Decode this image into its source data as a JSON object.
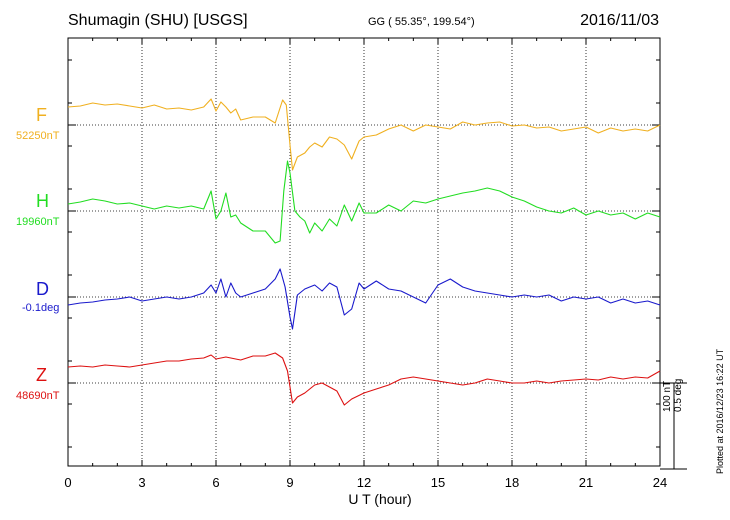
{
  "header": {
    "title": "Shumagin (SHU)  [USGS]",
    "coords": "GG ( 55.35°, 199.54°)",
    "date": "2016/11/03"
  },
  "colors": {
    "F": "#f0b020",
    "H": "#22dd22",
    "D": "#1a1acc",
    "Z": "#dd1111"
  },
  "components": {
    "F": {
      "letter": "F",
      "baseline": "52250nT"
    },
    "H": {
      "letter": "H",
      "baseline": "19960nT"
    },
    "D": {
      "letter": "D",
      "baseline": "-0.1deg"
    },
    "Z": {
      "letter": "Z",
      "baseline": "48690nT"
    }
  },
  "scale_bar": {
    "line1": "100 nT",
    "line2": "0.5 deg",
    "nt_span": 100
  },
  "plotted_note": "Plotted at 2016/12/23 16:22 UT",
  "chart_data": {
    "type": "line",
    "title": "Shumagin (SHU)  [USGS]",
    "xlabel": "U T (hour)",
    "ylabel": "",
    "xlim": [
      0,
      24
    ],
    "xticks": [
      0,
      3,
      6,
      9,
      12,
      15,
      18,
      21,
      24
    ],
    "x_tick_labels": [
      "0",
      "3",
      "6",
      "9",
      "12",
      "15",
      "18",
      "21",
      "24"
    ],
    "grid": true,
    "units": "nT offset from baseline",
    "series": [
      {
        "name": "F",
        "baseline": "52250nT",
        "points": [
          [
            0,
            18
          ],
          [
            0.5,
            19
          ],
          [
            1,
            22
          ],
          [
            1.5,
            20
          ],
          [
            2,
            21
          ],
          [
            2.5,
            19
          ],
          [
            3,
            17
          ],
          [
            3.5,
            20
          ],
          [
            4,
            16
          ],
          [
            4.5,
            17
          ],
          [
            5,
            15
          ],
          [
            5.5,
            18
          ],
          [
            5.8,
            26
          ],
          [
            6,
            14
          ],
          [
            6.2,
            23
          ],
          [
            6.4,
            18
          ],
          [
            6.6,
            12
          ],
          [
            6.8,
            16
          ],
          [
            7,
            5
          ],
          [
            7.5,
            8
          ],
          [
            8,
            8
          ],
          [
            8.4,
            2
          ],
          [
            8.7,
            25
          ],
          [
            8.85,
            20
          ],
          [
            9,
            -20
          ],
          [
            9.1,
            -45
          ],
          [
            9.3,
            -32
          ],
          [
            9.6,
            -28
          ],
          [
            9.8,
            -22
          ],
          [
            10,
            -18
          ],
          [
            10.3,
            -22
          ],
          [
            10.6,
            -12
          ],
          [
            10.9,
            -14
          ],
          [
            11.2,
            -20
          ],
          [
            11.5,
            -34
          ],
          [
            11.8,
            -16
          ],
          [
            12,
            -12
          ],
          [
            12.5,
            -10
          ],
          [
            13,
            -4
          ],
          [
            13.5,
            0
          ],
          [
            14,
            -6
          ],
          [
            14.5,
            0
          ],
          [
            15,
            -2
          ],
          [
            15.5,
            -4
          ],
          [
            16,
            3
          ],
          [
            16.5,
            0
          ],
          [
            17,
            2
          ],
          [
            17.5,
            3
          ],
          [
            18,
            -1
          ],
          [
            18.5,
            0
          ],
          [
            19,
            -3
          ],
          [
            19.5,
            -2
          ],
          [
            20,
            -6
          ],
          [
            20.5,
            -4
          ],
          [
            21,
            -2
          ],
          [
            21.5,
            -8
          ],
          [
            22,
            -3
          ],
          [
            22.5,
            -6
          ],
          [
            23,
            -4
          ],
          [
            23.5,
            -6
          ],
          [
            24,
            0
          ]
        ]
      },
      {
        "name": "H",
        "baseline": "19960nT",
        "points": [
          [
            0,
            7
          ],
          [
            0.5,
            9
          ],
          [
            1,
            12
          ],
          [
            1.5,
            10
          ],
          [
            2,
            7
          ],
          [
            2.5,
            8
          ],
          [
            3,
            5
          ],
          [
            3.5,
            2
          ],
          [
            4,
            5
          ],
          [
            4.5,
            3
          ],
          [
            5,
            5
          ],
          [
            5.5,
            2
          ],
          [
            5.8,
            20
          ],
          [
            6,
            -8
          ],
          [
            6.2,
            0
          ],
          [
            6.4,
            18
          ],
          [
            6.6,
            -6
          ],
          [
            6.8,
            -4
          ],
          [
            7,
            -12
          ],
          [
            7.5,
            -20
          ],
          [
            8,
            -20
          ],
          [
            8.4,
            -32
          ],
          [
            8.6,
            -30
          ],
          [
            8.75,
            20
          ],
          [
            8.9,
            50
          ],
          [
            9,
            38
          ],
          [
            9.2,
            0
          ],
          [
            9.4,
            -6
          ],
          [
            9.6,
            -10
          ],
          [
            9.8,
            -22
          ],
          [
            10,
            -12
          ],
          [
            10.3,
            -20
          ],
          [
            10.6,
            -8
          ],
          [
            10.9,
            -15
          ],
          [
            11.2,
            6
          ],
          [
            11.5,
            -10
          ],
          [
            11.8,
            8
          ],
          [
            12,
            -2
          ],
          [
            12.5,
            -2
          ],
          [
            13,
            6
          ],
          [
            13.5,
            0
          ],
          [
            14,
            10
          ],
          [
            14.5,
            8
          ],
          [
            15,
            12
          ],
          [
            15.5,
            15
          ],
          [
            16,
            18
          ],
          [
            16.5,
            20
          ],
          [
            17,
            23
          ],
          [
            17.5,
            20
          ],
          [
            18,
            14
          ],
          [
            18.5,
            10
          ],
          [
            19,
            4
          ],
          [
            19.5,
            0
          ],
          [
            20,
            -2
          ],
          [
            20.5,
            3
          ],
          [
            21,
            -4
          ],
          [
            21.5,
            0
          ],
          [
            22,
            -4
          ],
          [
            22.5,
            -2
          ],
          [
            23,
            -8
          ],
          [
            23.5,
            -2
          ],
          [
            24,
            -6
          ]
        ]
      },
      {
        "name": "D",
        "baseline": "-0.1deg",
        "points": [
          [
            0,
            -8
          ],
          [
            0.5,
            -6
          ],
          [
            1,
            -5
          ],
          [
            1.5,
            -3
          ],
          [
            2,
            -2
          ],
          [
            2.5,
            0
          ],
          [
            3,
            -4
          ],
          [
            3.5,
            -2
          ],
          [
            4,
            0
          ],
          [
            4.5,
            -2
          ],
          [
            5,
            0
          ],
          [
            5.5,
            4
          ],
          [
            5.8,
            12
          ],
          [
            6,
            4
          ],
          [
            6.2,
            18
          ],
          [
            6.4,
            0
          ],
          [
            6.6,
            14
          ],
          [
            6.8,
            4
          ],
          [
            7,
            0
          ],
          [
            7.5,
            4
          ],
          [
            8,
            8
          ],
          [
            8.4,
            18
          ],
          [
            8.6,
            28
          ],
          [
            8.8,
            10
          ],
          [
            9,
            -20
          ],
          [
            9.1,
            -32
          ],
          [
            9.3,
            2
          ],
          [
            9.6,
            8
          ],
          [
            9.8,
            10
          ],
          [
            10,
            12
          ],
          [
            10.3,
            6
          ],
          [
            10.6,
            14
          ],
          [
            10.9,
            10
          ],
          [
            11.2,
            -18
          ],
          [
            11.5,
            -12
          ],
          [
            11.8,
            14
          ],
          [
            12,
            8
          ],
          [
            12.5,
            16
          ],
          [
            13,
            8
          ],
          [
            13.5,
            6
          ],
          [
            14,
            0
          ],
          [
            14.5,
            -6
          ],
          [
            15,
            12
          ],
          [
            15.5,
            18
          ],
          [
            16,
            10
          ],
          [
            16.5,
            6
          ],
          [
            17,
            4
          ],
          [
            17.5,
            2
          ],
          [
            18,
            0
          ],
          [
            18.5,
            2
          ],
          [
            19,
            0
          ],
          [
            19.5,
            2
          ],
          [
            20,
            -4
          ],
          [
            20.5,
            0
          ],
          [
            21,
            -2
          ],
          [
            21.5,
            0
          ],
          [
            22,
            -6
          ],
          [
            22.5,
            -2
          ],
          [
            23,
            -6
          ],
          [
            23.5,
            -4
          ],
          [
            24,
            -8
          ]
        ]
      },
      {
        "name": "Z",
        "baseline": "48690nT",
        "points": [
          [
            0,
            16
          ],
          [
            0.5,
            17
          ],
          [
            1,
            16
          ],
          [
            1.5,
            18
          ],
          [
            2,
            17
          ],
          [
            2.5,
            16
          ],
          [
            3,
            18
          ],
          [
            3.5,
            20
          ],
          [
            4,
            22
          ],
          [
            4.5,
            22
          ],
          [
            5,
            24
          ],
          [
            5.5,
            25
          ],
          [
            5.8,
            28
          ],
          [
            6,
            24
          ],
          [
            6.4,
            26
          ],
          [
            6.8,
            24
          ],
          [
            7,
            23
          ],
          [
            7.5,
            27
          ],
          [
            8,
            27
          ],
          [
            8.4,
            30
          ],
          [
            8.7,
            25
          ],
          [
            8.9,
            12
          ],
          [
            9.1,
            -20
          ],
          [
            9.3,
            -14
          ],
          [
            9.6,
            -10
          ],
          [
            10,
            -2
          ],
          [
            10.3,
            0
          ],
          [
            10.6,
            -4
          ],
          [
            10.9,
            -8
          ],
          [
            11.2,
            -22
          ],
          [
            11.5,
            -16
          ],
          [
            12,
            -10
          ],
          [
            12.5,
            -6
          ],
          [
            13,
            -2
          ],
          [
            13.5,
            4
          ],
          [
            14,
            6
          ],
          [
            14.5,
            4
          ],
          [
            15,
            2
          ],
          [
            15.5,
            0
          ],
          [
            16,
            -2
          ],
          [
            16.5,
            0
          ],
          [
            17,
            4
          ],
          [
            17.5,
            2
          ],
          [
            18,
            0
          ],
          [
            18.5,
            0
          ],
          [
            19,
            2
          ],
          [
            19.5,
            0
          ],
          [
            20,
            2
          ],
          [
            20.5,
            3
          ],
          [
            21,
            4
          ],
          [
            21.5,
            3
          ],
          [
            22,
            6
          ],
          [
            22.5,
            4
          ],
          [
            23,
            6
          ],
          [
            23.5,
            5
          ],
          [
            24,
            12
          ]
        ]
      }
    ]
  }
}
